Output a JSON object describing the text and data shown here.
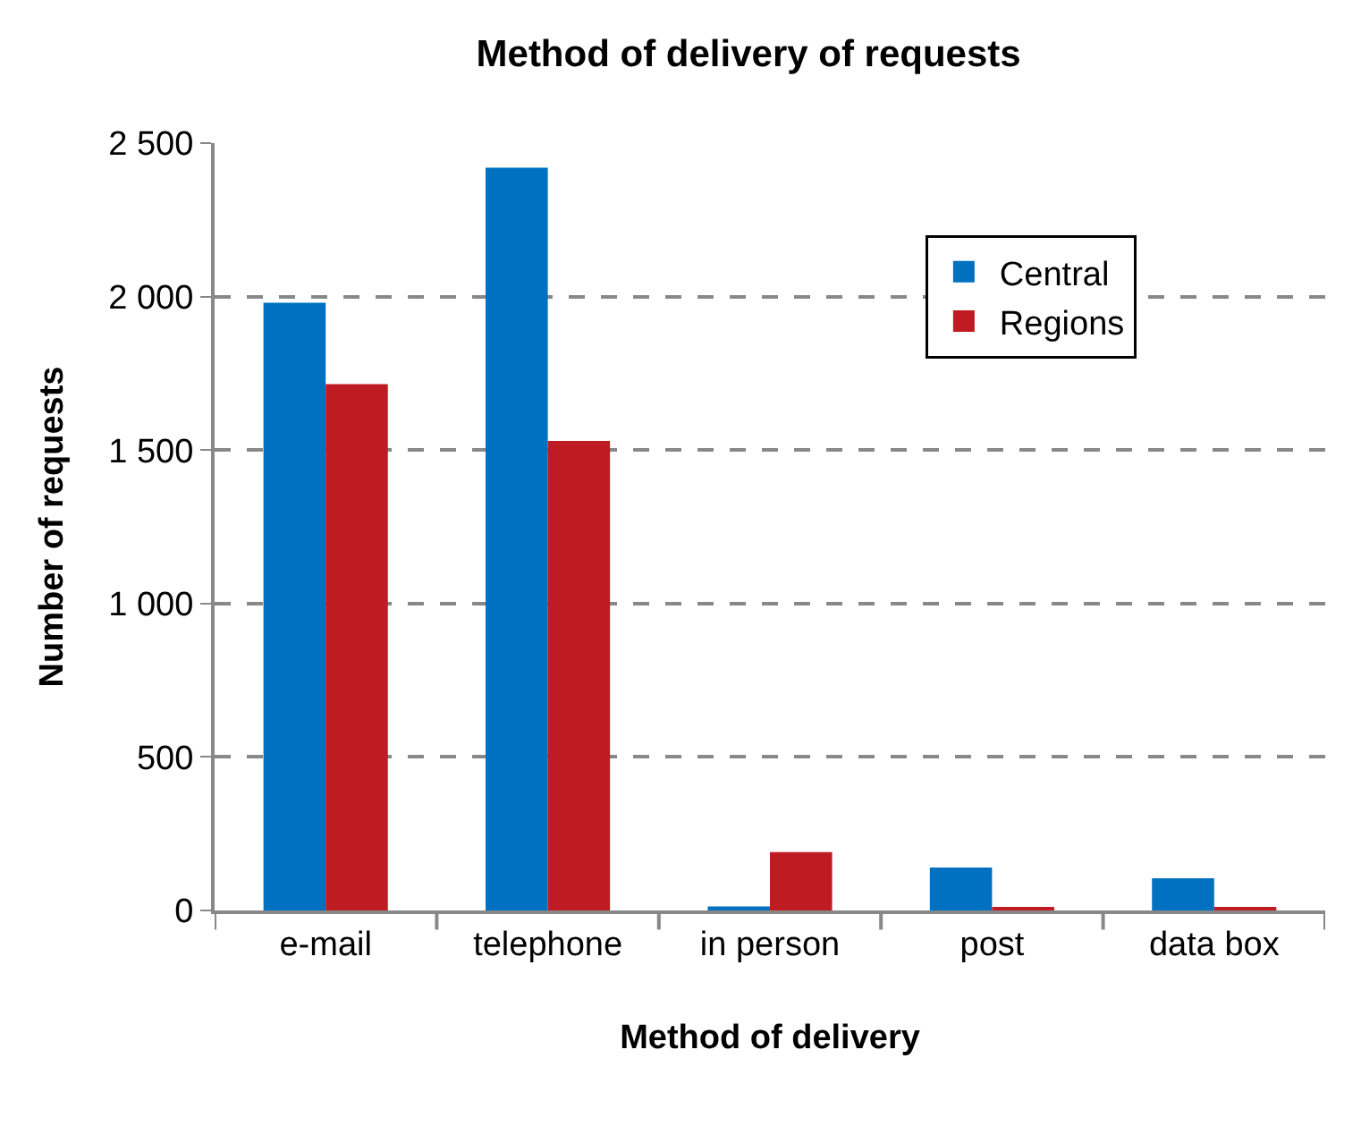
{
  "chart_data": {
    "type": "bar",
    "title": "Method of delivery of requests",
    "xlabel": "Method of delivery",
    "ylabel": "Number of requests",
    "categories": [
      "e-mail",
      "telephone",
      "in person",
      "post",
      "data box"
    ],
    "series": [
      {
        "name": "Central",
        "color": "#0070c0",
        "values": [
          1980,
          2420,
          13,
          140,
          105
        ]
      },
      {
        "name": "Regions",
        "color": "#be1b22",
        "values": [
          1715,
          1530,
          190,
          7,
          10
        ]
      }
    ],
    "ylim": [
      0,
      2500
    ],
    "yticks": [
      {
        "value": 0,
        "label": "0"
      },
      {
        "value": 500,
        "label": "500"
      },
      {
        "value": 1000,
        "label": "1 000"
      },
      {
        "value": 1500,
        "label": "1 500"
      },
      {
        "value": 2000,
        "label": "2 000"
      },
      {
        "value": 2500,
        "label": "2 500"
      }
    ],
    "grid": "y",
    "legend": "top right"
  }
}
